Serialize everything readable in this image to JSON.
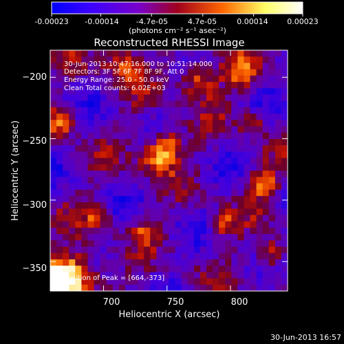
{
  "colorbar": {
    "tick_labels": [
      "-0.00023",
      "-0.00014",
      "-4.7e-05",
      "4.7e-05",
      "0.00014",
      "0.00023"
    ],
    "tick_values": [
      -0.00023,
      -0.00014,
      -4.7e-05,
      4.7e-05,
      0.00014,
      0.00023
    ],
    "range": [
      -0.00023,
      0.00023
    ],
    "units_label": "(photons cm⁻² s⁻¹ asec⁻²)",
    "colors": [
      "#0000ff",
      "#7a00c8",
      "#a0001e",
      "#ff6600",
      "#ffff99",
      "#ffffff"
    ]
  },
  "chart_data": {
    "type": "heatmap",
    "title": "Reconstructed RHESSI Image",
    "xlabel": "Heliocentric X (arcsec)",
    "ylabel": "Heliocentric Y (arcsec)",
    "xlim": [
      658,
      845
    ],
    "ylim": [
      -374,
      -178
    ],
    "x_ticks": [
      700,
      750,
      800
    ],
    "x_tick_labels": [
      "700",
      "750",
      "800"
    ],
    "y_ticks": [
      -200,
      -250,
      -300,
      -350
    ],
    "y_tick_labels": [
      "−200",
      "−250",
      "−300",
      "−350"
    ],
    "grid": false,
    "legend": "top-left",
    "annotations": [
      "30-Jun-2013 10:47:16.000 to 10:51:14.000",
      "Detectors: 3F 5F 6F 7F 8F 9F, Att 0",
      "Energy Range: 25.0 - 50.0 keV",
      "Clean    Total counts: 6.02E+03"
    ],
    "peak_label": "Position of Peak = [664,-373]",
    "peak_position": [
      664,
      -373
    ]
  },
  "footer": {
    "timestamp": "30-Jun-2013 16:57"
  }
}
